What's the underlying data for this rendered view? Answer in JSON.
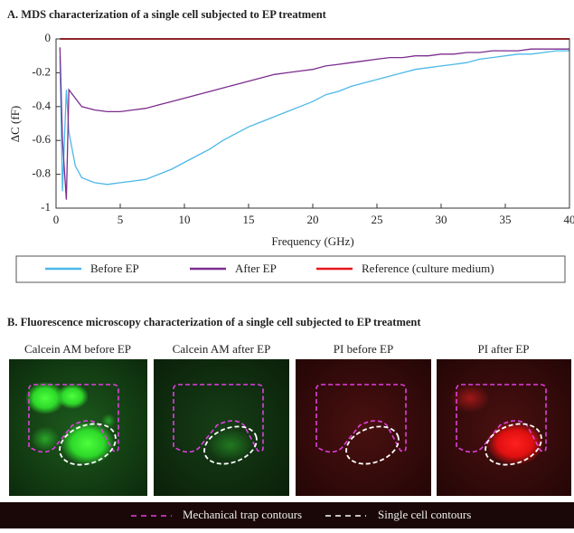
{
  "chart_data": {
    "type": "line",
    "title": "A. MDS characterization of a single cell subjected to EP treatment",
    "x_label": "Frequency (GHz)",
    "y_label": "ΔC (fF)",
    "x": [
      0.3,
      0.5,
      0.8,
      1,
      1.5,
      2,
      3,
      4,
      5,
      6,
      7,
      8,
      9,
      10,
      11,
      12,
      13,
      14,
      15,
      16,
      17,
      18,
      19,
      20,
      21,
      22,
      23,
      24,
      25,
      26,
      27,
      28,
      29,
      30,
      31,
      32,
      33,
      34,
      35,
      36,
      37,
      38,
      39,
      40
    ],
    "series": [
      {
        "name": "Before EP",
        "color": "#4db8e8",
        "values": [
          -0.1,
          -0.9,
          -0.3,
          -0.55,
          -0.75,
          -0.82,
          -0.85,
          -0.86,
          -0.85,
          -0.84,
          -0.83,
          -0.8,
          -0.77,
          -0.73,
          -0.69,
          -0.65,
          -0.6,
          -0.56,
          -0.52,
          -0.49,
          -0.46,
          -0.43,
          -0.4,
          -0.37,
          -0.33,
          -0.31,
          -0.28,
          -0.26,
          -0.24,
          -0.22,
          -0.2,
          -0.18,
          -0.17,
          -0.16,
          -0.15,
          -0.14,
          -0.12,
          -0.11,
          -0.1,
          -0.09,
          -0.09,
          -0.08,
          -0.07,
          -0.07
        ]
      },
      {
        "name": "After EP",
        "color": "#7b2d8e",
        "values": [
          -0.05,
          -0.6,
          -0.95,
          -0.3,
          -0.35,
          -0.4,
          -0.42,
          -0.43,
          -0.43,
          -0.42,
          -0.41,
          -0.39,
          -0.37,
          -0.35,
          -0.33,
          -0.31,
          -0.29,
          -0.27,
          -0.25,
          -0.23,
          -0.21,
          -0.2,
          -0.19,
          -0.18,
          -0.16,
          -0.15,
          -0.14,
          -0.13,
          -0.12,
          -0.11,
          -0.11,
          -0.1,
          -0.1,
          -0.09,
          -0.09,
          -0.08,
          -0.08,
          -0.07,
          -0.07,
          -0.07,
          -0.06,
          -0.06,
          -0.06,
          -0.06
        ]
      },
      {
        "name": "Reference (culture medium)",
        "color": "#e8141b",
        "values": [
          0,
          0,
          0,
          0,
          0,
          0,
          0,
          0,
          0,
          0,
          0,
          0,
          0,
          0,
          0,
          0,
          0,
          0,
          0,
          0,
          0,
          0,
          0,
          0,
          0,
          0,
          0,
          0,
          0,
          0,
          0,
          0,
          0,
          0,
          0,
          0,
          0,
          0,
          0,
          0,
          0,
          0,
          0,
          0
        ]
      }
    ],
    "xlim": [
      0,
      40
    ],
    "xticks": [
      0,
      5,
      10,
      15,
      20,
      25,
      30,
      35,
      40
    ],
    "ylim": [
      -1,
      0
    ],
    "yticks": [
      -1,
      -0.8,
      -0.6,
      -0.4,
      -0.2,
      0
    ],
    "grid": false
  },
  "panel_b": {
    "title": "B. Fluorescence microscopy characterization of a single cell subjected to EP treatment",
    "images": [
      "Calcein AM before EP",
      "Calcein AM after EP",
      "PI before EP",
      "PI after EP"
    ],
    "legend": [
      "Mechanical trap contours",
      "Single cell contours"
    ]
  }
}
